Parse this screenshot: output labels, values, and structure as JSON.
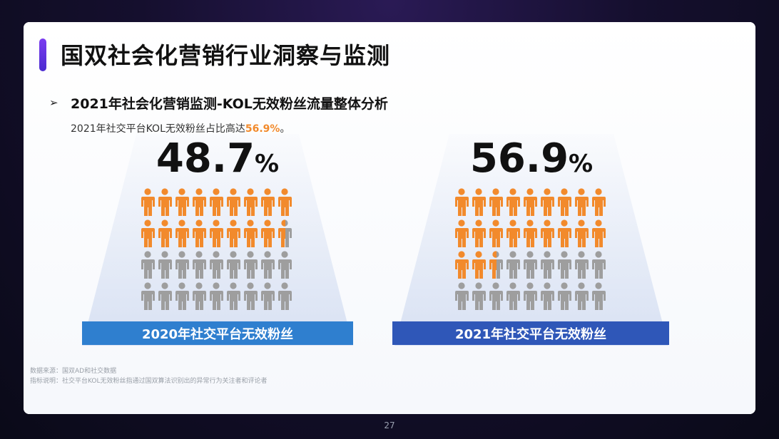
{
  "header": {
    "title": "国双社会化营销行业洞察与监测"
  },
  "section": {
    "arrow": "➢",
    "subtitle": "2021年社会化营销监测-KOL无效粉丝流量整体分析",
    "desc_prefix": "2021年社交平台KOL无效粉丝占比高达",
    "desc_highlight": "56.9%",
    "desc_suffix": "。"
  },
  "colors": {
    "orange": "#f28a2c",
    "gray": "#9e9e9e",
    "blue_left": "#2f7fcf",
    "blue_right": "#2f57b8"
  },
  "chart_data": [
    {
      "type": "pictogram",
      "label": "2020年社交平台无效粉丝",
      "value_text": "48.7",
      "unit": "%",
      "value": 48.7,
      "rows": 4,
      "cols": 9,
      "filled": 17.5
    },
    {
      "type": "pictogram",
      "label": "2021年社交平台无效粉丝",
      "value_text": "56.9",
      "unit": "%",
      "value": 56.9,
      "rows": 4,
      "cols": 9,
      "filled": 20.5
    }
  ],
  "footer": {
    "source_line1": "数据来源：国双AD和社交数据",
    "source_line2": "指标说明：社交平台KOL无效粉丝指通过国双算法识别出的异常行为关注者和评论者",
    "page_number": "27"
  }
}
